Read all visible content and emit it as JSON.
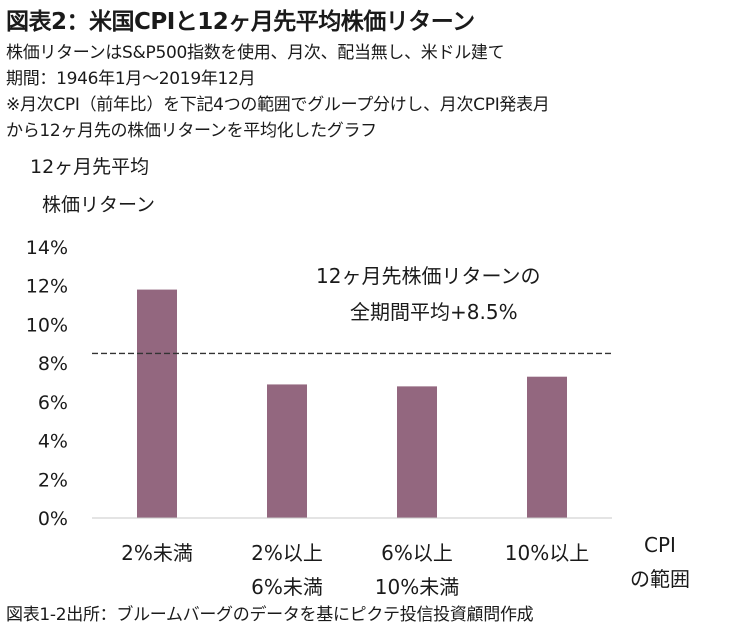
{
  "header": {
    "title": "図表2：米国CPIと12ヶ月先平均株価リターン",
    "notes": [
      "株価リターンはS&P500指数を使用、月次、配当無し、米ドル建て",
      "期間：1946年1月～2019年12月",
      "※月次CPI（前年比）を下記4つの範囲でグループ分けし、月次CPI発表月",
      "から12ヶ月先の株価リターンを平均化したグラフ"
    ]
  },
  "chart_data": {
    "type": "bar",
    "ylabel_lines": [
      "12ヶ月先平均",
      "株価リターン"
    ],
    "xlabel_lines": [
      "CPI",
      "の範囲"
    ],
    "categories": [
      [
        "2%未満"
      ],
      [
        "2%以上",
        "6%未満"
      ],
      [
        "6%以上",
        "10%未満"
      ],
      [
        "10%以上"
      ]
    ],
    "values": [
      11.8,
      6.9,
      6.8,
      7.3
    ],
    "ylim": [
      0,
      14
    ],
    "yticks": [
      0,
      2,
      4,
      6,
      8,
      10,
      12,
      14
    ],
    "ytick_labels": [
      "0%",
      "2%",
      "4%",
      "6%",
      "8%",
      "10%",
      "12%",
      "14%"
    ],
    "grid": false,
    "bar_color": "#93677f",
    "reference_line": {
      "value": 8.5,
      "style": "dashed"
    },
    "annotation_lines": [
      "12ヶ月先株価リターンの",
      "全期間平均+8.5%"
    ]
  },
  "footer": {
    "source": "図表1-2出所：ブルームバーグのデータを基にピクテ投信投資顧問作成"
  }
}
